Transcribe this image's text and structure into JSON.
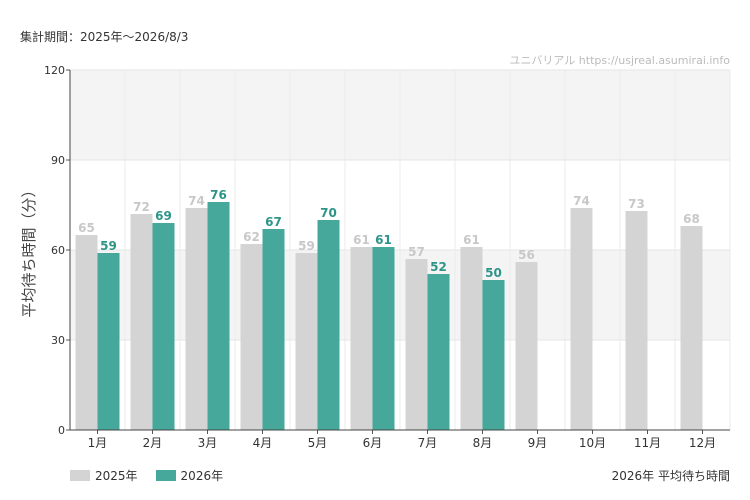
{
  "header": {
    "period": "集計期間：2025年～2026/8/3",
    "source": "ユニバリアル  https://usjreal.asumirai.info"
  },
  "footer": {
    "label": "2026年 平均待ち時間"
  },
  "colors": {
    "series_2025": "#d4d4d4",
    "series_2026": "#45a89b",
    "label_2025": "#c8c8c8",
    "label_2026": "#2e9488",
    "band": "#f4f4f4"
  },
  "chart_data": {
    "type": "bar",
    "ylabel": "平均待ち時間（分）",
    "ylim": [
      0,
      120
    ],
    "yticks": [
      0,
      30,
      60,
      90,
      120
    ],
    "categories": [
      "1月",
      "2月",
      "3月",
      "4月",
      "5月",
      "6月",
      "7月",
      "8月",
      "9月",
      "10月",
      "11月",
      "12月"
    ],
    "series": [
      {
        "name": "2025年",
        "values": [
          65,
          72,
          74,
          62,
          59,
          61,
          57,
          61,
          56,
          74,
          73,
          68
        ]
      },
      {
        "name": "2026年",
        "values": [
          59,
          69,
          76,
          67,
          70,
          61,
          52,
          50,
          null,
          null,
          null,
          null
        ]
      }
    ],
    "legend": "bottom-left",
    "grid": true
  }
}
